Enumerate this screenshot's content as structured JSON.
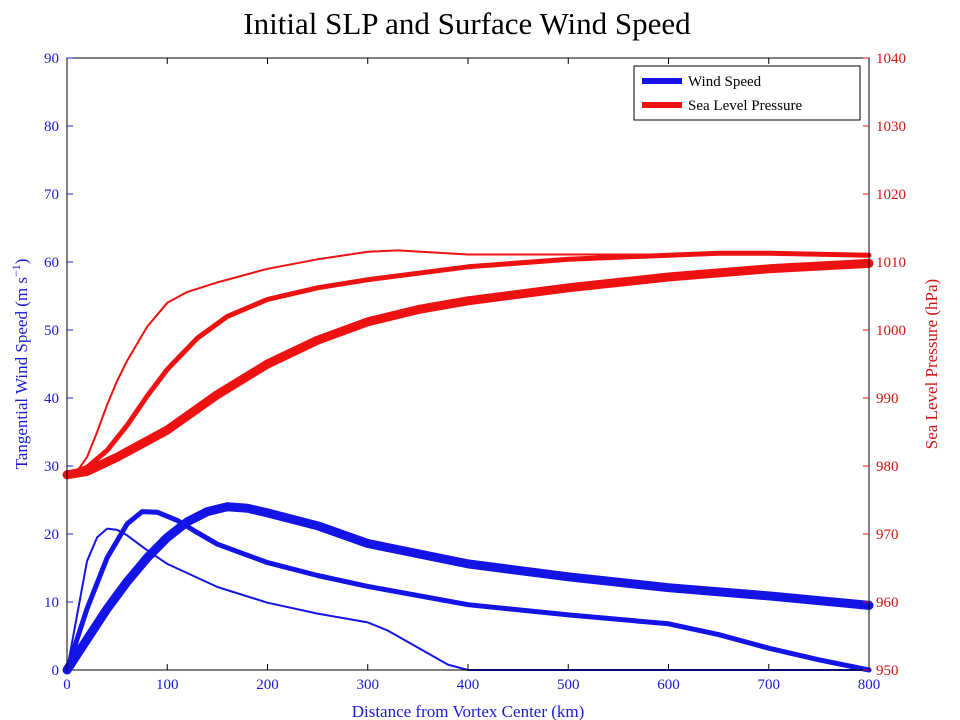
{
  "chart_data": {
    "type": "line",
    "title": "Initial SLP and Surface Wind Speed",
    "xlabel": "Distance from Vortex Center (km)",
    "xlim": [
      0,
      800
    ],
    "x_ticks": [
      "0",
      "100",
      "200",
      "300",
      "400",
      "500",
      "600",
      "700",
      "800"
    ],
    "y_left": {
      "label_main": "Tangential Wind Speed (m s",
      "label_sup": "−1",
      "label_close": ")",
      "lim": [
        0,
        90
      ],
      "ticks": [
        "0",
        "10",
        "20",
        "30",
        "40",
        "50",
        "60",
        "70",
        "80",
        "90"
      ],
      "color": "#1a1ad6"
    },
    "y_right": {
      "label": "Sea Level Pressure (hPa)",
      "lim": [
        950,
        1040
      ],
      "ticks": [
        "950",
        "960",
        "970",
        "980",
        "990",
        "1000",
        "1010",
        "1020",
        "1030",
        "1040"
      ],
      "color": "#d01414"
    },
    "legend": {
      "position": "top-right",
      "entries": [
        {
          "label": "Wind Speed",
          "color": "#1414e6"
        },
        {
          "label": "Sea Level Pressure",
          "color": "#ee1111"
        }
      ]
    },
    "wind_series": [
      {
        "width": "thin",
        "x": [
          0,
          10,
          20,
          30,
          40,
          50,
          60,
          80,
          100,
          150,
          200,
          250,
          300,
          320,
          350,
          380,
          400,
          500,
          600,
          700,
          800
        ],
        "y": [
          0,
          8,
          16,
          19.5,
          20.8,
          20.6,
          19.8,
          17.6,
          15.6,
          12.2,
          9.9,
          8.3,
          7.0,
          5.8,
          3.3,
          0.8,
          0,
          0,
          0,
          0,
          0
        ]
      },
      {
        "width": "medium",
        "x": [
          0,
          10,
          20,
          40,
          60,
          75,
          90,
          110,
          130,
          150,
          200,
          250,
          300,
          400,
          500,
          600,
          650,
          700,
          750,
          800
        ],
        "y": [
          0,
          4.5,
          9,
          16.5,
          21.5,
          23.3,
          23.2,
          22,
          20.2,
          18.5,
          15.8,
          13.9,
          12.3,
          9.6,
          8.1,
          6.8,
          5.2,
          3.2,
          1.5,
          0
        ]
      },
      {
        "width": "thick",
        "x": [
          0,
          20,
          40,
          60,
          80,
          100,
          120,
          140,
          160,
          180,
          200,
          250,
          300,
          400,
          500,
          600,
          700,
          800
        ],
        "y": [
          0,
          4.5,
          9,
          13,
          16.5,
          19.5,
          21.8,
          23.3,
          24,
          23.8,
          23.1,
          21.2,
          18.6,
          15.6,
          13.7,
          12.1,
          10.9,
          9.5
        ]
      }
    ],
    "pressure_series": [
      {
        "width": "thin",
        "x": [
          0,
          10,
          20,
          30,
          40,
          50,
          60,
          80,
          100,
          120,
          150,
          200,
          250,
          300,
          330,
          400,
          500,
          600,
          800
        ],
        "y": [
          978.7,
          979.2,
          981.3,
          985,
          989,
          992.5,
          995.5,
          1000.5,
          1004,
          1005.6,
          1007,
          1009,
          1010.4,
          1011.5,
          1011.7,
          1011.1,
          1011.1,
          1011.1,
          1011.1
        ]
      },
      {
        "width": "medium",
        "x": [
          0,
          20,
          40,
          60,
          80,
          100,
          130,
          160,
          200,
          250,
          300,
          400,
          500,
          600,
          650,
          700,
          800
        ],
        "y": [
          978.7,
          979.8,
          982.3,
          986,
          990.3,
          994.2,
          998.8,
          1002,
          1004.5,
          1006.2,
          1007.4,
          1009.3,
          1010.4,
          1011,
          1011.3,
          1011.3,
          1011.0
        ]
      },
      {
        "width": "thick",
        "x": [
          0,
          20,
          50,
          100,
          150,
          200,
          250,
          300,
          350,
          400,
          500,
          600,
          700,
          800
        ],
        "y": [
          978.7,
          979.2,
          981.3,
          985.3,
          990.5,
          995,
          998.5,
          1001.2,
          1003,
          1004.3,
          1006.2,
          1007.8,
          1009,
          1009.8
        ]
      }
    ]
  }
}
